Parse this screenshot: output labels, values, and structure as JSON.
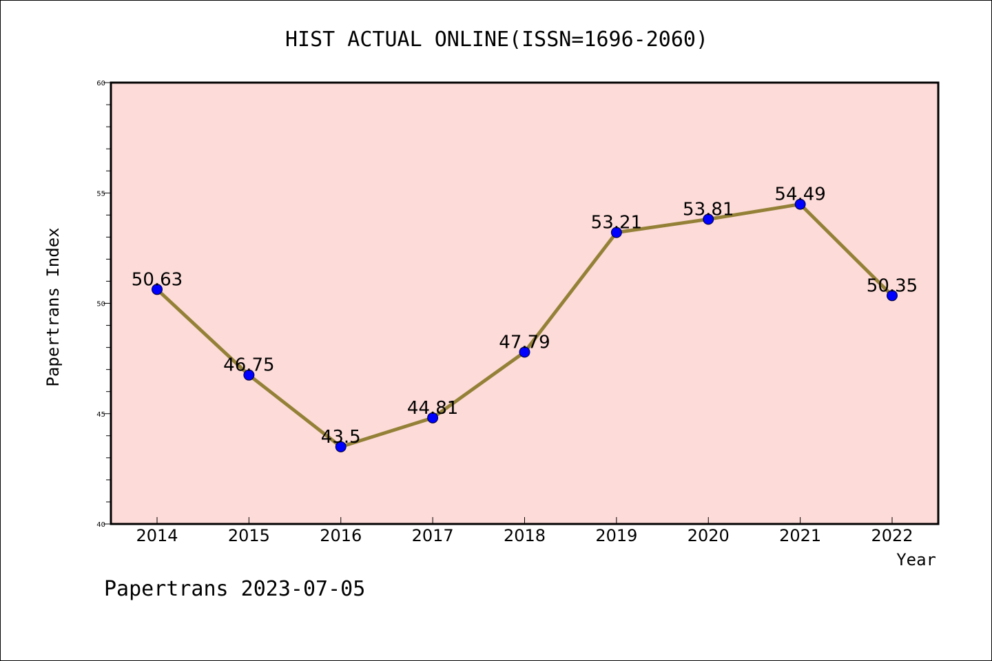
{
  "chart_data": {
    "type": "line",
    "title": "HIST ACTUAL ONLINE(ISSN=1696-2060)",
    "xlabel": "Year",
    "ylabel": "Papertrans Index",
    "x": [
      "2014",
      "2015",
      "2016",
      "2017",
      "2018",
      "2019",
      "2020",
      "2021",
      "2022"
    ],
    "series": [
      {
        "values": [
          50.63,
          46.75,
          43.5,
          44.81,
          47.79,
          53.21,
          53.81,
          54.49,
          50.35
        ],
        "labels": [
          "50.63",
          "46.75",
          "43.5",
          "44.81",
          "47.79",
          "53.21",
          "53.81",
          "54.49",
          "50.35"
        ]
      }
    ],
    "ylim": [
      40,
      60
    ],
    "yticks": [
      "40",
      "45",
      "50",
      "55",
      "60"
    ],
    "grid": false,
    "legend": "none",
    "colors": {
      "plot_background": "#fddbd8",
      "line": "#948137",
      "marker": "#0000ff"
    }
  },
  "footer": "Papertrans 2023-07-05"
}
